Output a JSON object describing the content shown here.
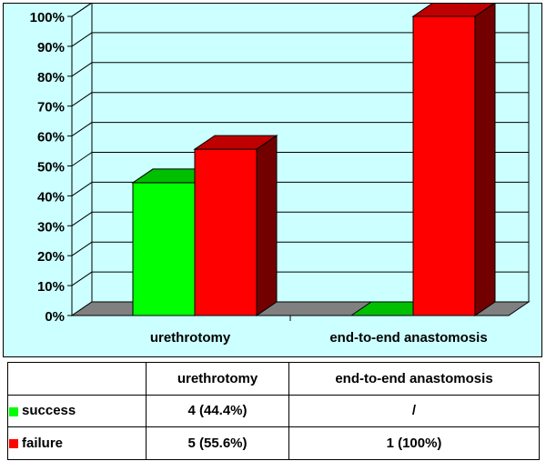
{
  "chart_data": {
    "type": "bar",
    "categories": [
      "urethrotomy",
      "end-to-end anastomosis"
    ],
    "series": [
      {
        "name": "success",
        "values": [
          44.4,
          0
        ],
        "color": "#00ff00"
      },
      {
        "name": "failure",
        "values": [
          55.6,
          100
        ],
        "color": "#ff0000"
      }
    ],
    "y_ticks": [
      "0%",
      "10%",
      "20%",
      "30%",
      "40%",
      "50%",
      "60%",
      "70%",
      "80%",
      "90%",
      "100%"
    ],
    "ylim": [
      0,
      100
    ],
    "grid": true,
    "title": "",
    "xlabel": "",
    "ylabel": "",
    "legend": "table-rows"
  },
  "table": {
    "header": [
      "",
      "urethrotomy",
      "end-to-end anastomosis"
    ],
    "rows": [
      {
        "label": "success",
        "color": "#00ff00",
        "cells": [
          "4 (44.4%)",
          "/"
        ]
      },
      {
        "label": "failure",
        "color": "#ff0000",
        "cells": [
          "5 (55.6%)",
          "1 (100%)"
        ]
      }
    ]
  }
}
